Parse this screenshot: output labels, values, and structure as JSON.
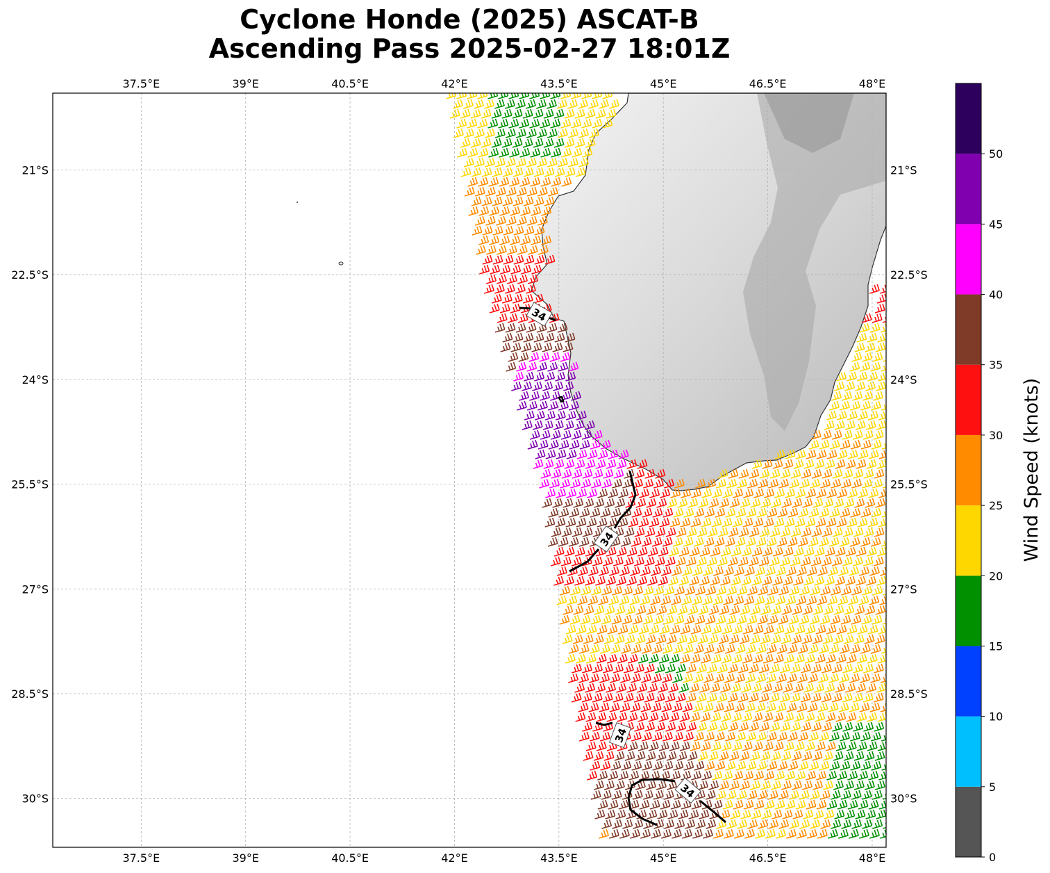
{
  "title_line1": "Cyclone Honde (2025) ASCAT-B",
  "title_line2": "Ascending Pass 2025-02-27 18:01Z",
  "map": {
    "lon_range": [
      36.23,
      48.2
    ],
    "lat_range": [
      -19.9,
      -30.7
    ],
    "lon_ticks": [
      37.5,
      39,
      40.5,
      42,
      43.5,
      45,
      46.5,
      48
    ],
    "lon_tick_labels": [
      "37.5°E",
      "39°E",
      "40.5°E",
      "42°E",
      "43.5°E",
      "45°E",
      "46.5°E",
      "48°E"
    ],
    "lat_ticks": [
      -21,
      -22.5,
      -24,
      -25.5,
      -27,
      -28.5,
      -30
    ],
    "lat_tick_labels": [
      "21°S",
      "22.5°S",
      "24°S",
      "25.5°S",
      "27°S",
      "28.5°S",
      "30°S"
    ],
    "gridlines": true,
    "contour_label": "34",
    "coastline_color": "#333333"
  },
  "colorbar": {
    "label": "Wind Speed (knots)",
    "ticks": [
      "0",
      "5",
      "10",
      "15",
      "20",
      "25",
      "30",
      "35",
      "40",
      "45",
      "50"
    ],
    "bins": [
      {
        "min": 0,
        "max": 5,
        "color": "#555555"
      },
      {
        "min": 5,
        "max": 10,
        "color": "#00bfff"
      },
      {
        "min": 10,
        "max": 15,
        "color": "#0040ff"
      },
      {
        "min": 15,
        "max": 20,
        "color": "#009000"
      },
      {
        "min": 20,
        "max": 25,
        "color": "#ffd700"
      },
      {
        "min": 25,
        "max": 30,
        "color": "#ff8c00"
      },
      {
        "min": 30,
        "max": 35,
        "color": "#ff1010"
      },
      {
        "min": 35,
        "max": 40,
        "color": "#803a28"
      },
      {
        "min": 40,
        "max": 45,
        "color": "#ff00ff"
      },
      {
        "min": 45,
        "max": 50,
        "color": "#8000b0"
      },
      {
        "min": 50,
        "max": 55,
        "color": "#2c005c"
      }
    ]
  }
}
